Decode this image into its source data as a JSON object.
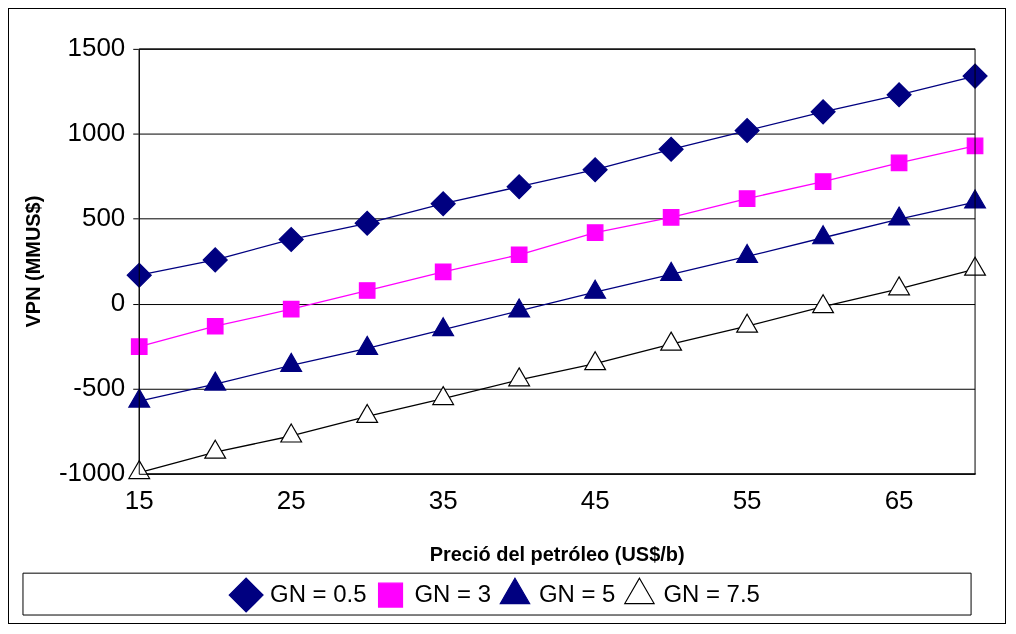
{
  "chart_data": {
    "type": "line",
    "xlabel": "Preció del petróleo (US$/b)",
    "ylabel": "VPN (MMUS$)",
    "x": [
      15,
      20,
      25,
      30,
      35,
      40,
      45,
      50,
      55,
      60,
      65,
      70
    ],
    "xlim": [
      15,
      70
    ],
    "xticks": [
      15,
      25,
      35,
      45,
      55,
      65
    ],
    "ylim": [
      -1000,
      1500
    ],
    "yticks": [
      -1000,
      -500,
      0,
      500,
      1000,
      1500
    ],
    "grid": "y",
    "legend": "bottom",
    "line_style": "solid",
    "series": [
      {
        "name": "GN = 0.5",
        "color": "#000080",
        "marker": "diamond",
        "values": [
          170,
          260,
          380,
          475,
          590,
          690,
          790,
          910,
          1020,
          1130,
          1230,
          1340
        ]
      },
      {
        "name": "GN = 3",
        "color": "#ff00ff",
        "marker": "square",
        "values": [
          -250,
          -130,
          -30,
          80,
          190,
          290,
          420,
          510,
          620,
          720,
          830,
          930
        ]
      },
      {
        "name": "GN = 5",
        "color": "#000080",
        "marker": "triangle",
        "values": [
          -570,
          -470,
          -360,
          -260,
          -150,
          -40,
          70,
          175,
          280,
          390,
          500,
          600
        ]
      },
      {
        "name": "GN = 7.5",
        "color": "#000000",
        "marker": "triangle",
        "values": [
          -990,
          -870,
          -775,
          -660,
          -555,
          -445,
          -350,
          -235,
          -130,
          -15,
          90,
          205
        ]
      }
    ]
  }
}
